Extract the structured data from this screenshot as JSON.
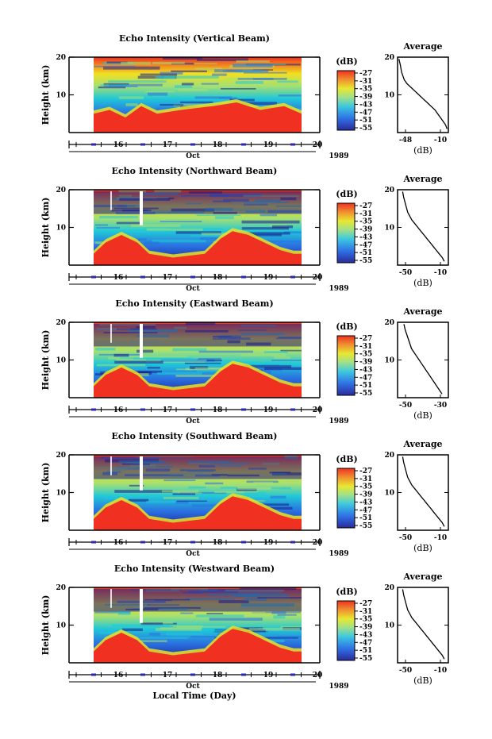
{
  "figure": {
    "xaxis_label": "Local Time (Day)",
    "month_label": "Oct",
    "year_label": "1989",
    "day_ticks": [
      "16",
      "17",
      "18",
      "19",
      "20"
    ],
    "height_label": "Height (km)",
    "height_ticks": [
      "20",
      "10"
    ],
    "colorbar_title": "(dB)",
    "colorbar_ticks": [
      "-27",
      "-31",
      "-35",
      "-39",
      "-43",
      "-47",
      "-51",
      "-55"
    ],
    "avg_title": "Average",
    "avg_unit": "(dB)",
    "colors": {
      "low": "#1a1a8c",
      "mid_low": "#2a6fe0",
      "cyan": "#20c8d8",
      "green": "#a8e070",
      "yellow": "#f0e020",
      "orange": "#f08020",
      "high": "#f03020"
    }
  },
  "panels": [
    {
      "title": "Echo Intensity (Vertical Beam)",
      "avg_xticks": [
        "-48",
        "-10"
      ],
      "clean_top": false
    },
    {
      "title": "Echo Intensity (Northward Beam)",
      "avg_xticks": [
        "-50",
        "-10"
      ],
      "clean_top": true
    },
    {
      "title": "Echo Intensity (Eastward Beam)",
      "avg_xticks": [
        "-50",
        "-30"
      ],
      "clean_top": true
    },
    {
      "title": "Echo Intensity (Southward Beam)",
      "avg_xticks": [
        "-50",
        "-10"
      ],
      "clean_top": true
    },
    {
      "title": "Echo Intensity (Westward Beam)",
      "avg_xticks": [
        "-50",
        "-10"
      ],
      "clean_top": true
    }
  ],
  "chart_data": [
    {
      "type": "heatmap",
      "title": "Echo Intensity (Vertical Beam)",
      "xlabel": "Local Time (Day)",
      "ylabel": "Height (km)",
      "xlim": [
        15.5,
        20.5
      ],
      "ylim": [
        0,
        20
      ],
      "clim": [
        -56,
        -27
      ],
      "colorbar_label": "(dB)"
    },
    {
      "type": "line",
      "title": "Average",
      "xlabel": "(dB)",
      "ylabel": "Height (km)",
      "xlim": [
        -48,
        -10
      ],
      "ylim": [
        0,
        20
      ],
      "x": [
        -47,
        -46,
        -45,
        -43,
        -41,
        -38,
        -35,
        -32,
        -29,
        -26,
        -23,
        -20,
        -18,
        -16,
        -14,
        -12,
        -11
      ],
      "y": [
        19.5,
        18,
        16,
        14,
        13,
        12,
        11,
        10,
        9,
        8,
        7,
        6,
        5,
        4,
        3,
        2,
        1
      ]
    },
    {
      "type": "heatmap",
      "title": "Echo Intensity (Northward Beam)",
      "xlabel": "Local Time (Day)",
      "ylabel": "Height (km)",
      "xlim": [
        15.5,
        20.5
      ],
      "ylim": [
        0,
        20
      ],
      "clim": [
        -56,
        -27
      ],
      "colorbar_label": "(dB)"
    },
    {
      "type": "line",
      "title": "Average",
      "xlabel": "(dB)",
      "ylabel": "Height (km)",
      "xlim": [
        -60,
        -10
      ],
      "ylim": [
        0,
        20
      ],
      "x": [
        -55,
        -54,
        -52,
        -50,
        -48,
        -46,
        -43,
        -40,
        -37,
        -34,
        -31,
        -28,
        -25,
        -22,
        -19,
        -16,
        -14
      ],
      "y": [
        19.5,
        18,
        16,
        14,
        13,
        12,
        11,
        10,
        9,
        8,
        7,
        6,
        5,
        4,
        3,
        2,
        1
      ]
    },
    {
      "type": "heatmap",
      "title": "Echo Intensity (Eastward Beam)",
      "xlabel": "Local Time (Day)",
      "ylabel": "Height (km)",
      "xlim": [
        15.5,
        20.5
      ],
      "ylim": [
        0,
        20
      ],
      "clim": [
        -56,
        -27
      ],
      "colorbar_label": "(dB)"
    },
    {
      "type": "line",
      "title": "Average",
      "xlabel": "(dB)",
      "ylabel": "Height (km)",
      "xlim": [
        -60,
        -20
      ],
      "ylim": [
        0,
        20
      ],
      "x": [
        -55,
        -54,
        -52,
        -50,
        -49,
        -47,
        -45,
        -43,
        -41,
        -39,
        -37,
        -35,
        -33,
        -31,
        -29,
        -27,
        -25
      ],
      "y": [
        19.5,
        18,
        16,
        14,
        13,
        12,
        11,
        10,
        9,
        8,
        7,
        6,
        5,
        4,
        3,
        2,
        1
      ]
    },
    {
      "type": "heatmap",
      "title": "Echo Intensity (Southward Beam)",
      "xlabel": "Local Time (Day)",
      "ylabel": "Height (km)",
      "xlim": [
        15.5,
        20.5
      ],
      "ylim": [
        0,
        20
      ],
      "clim": [
        -56,
        -27
      ],
      "colorbar_label": "(dB)"
    },
    {
      "type": "line",
      "title": "Average",
      "xlabel": "(dB)",
      "ylabel": "Height (km)",
      "xlim": [
        -60,
        -10
      ],
      "ylim": [
        0,
        20
      ],
      "x": [
        -55,
        -54,
        -52,
        -50,
        -48,
        -46,
        -43,
        -40,
        -37,
        -34,
        -31,
        -28,
        -25,
        -22,
        -19,
        -16,
        -14
      ],
      "y": [
        19.5,
        18,
        16,
        14,
        13,
        12,
        11,
        10,
        9,
        8,
        7,
        6,
        5,
        4,
        3,
        2,
        1
      ]
    },
    {
      "type": "heatmap",
      "title": "Echo Intensity (Westward Beam)",
      "xlabel": "Local Time (Day)",
      "ylabel": "Height (km)",
      "xlim": [
        15.5,
        20.5
      ],
      "ylim": [
        0,
        20
      ],
      "clim": [
        -56,
        -27
      ],
      "colorbar_label": "(dB)"
    },
    {
      "type": "line",
      "title": "Average",
      "xlabel": "(dB)",
      "ylabel": "Height (km)",
      "xlim": [
        -60,
        -10
      ],
      "ylim": [
        0,
        20
      ],
      "x": [
        -55,
        -54,
        -52,
        -50,
        -48,
        -46,
        -43,
        -40,
        -37,
        -34,
        -31,
        -28,
        -25,
        -22,
        -19,
        -16,
        -14
      ],
      "y": [
        19.5,
        18,
        16,
        14,
        13,
        12,
        11,
        10,
        9,
        8,
        7,
        6,
        5,
        4,
        3,
        2,
        1
      ]
    }
  ]
}
